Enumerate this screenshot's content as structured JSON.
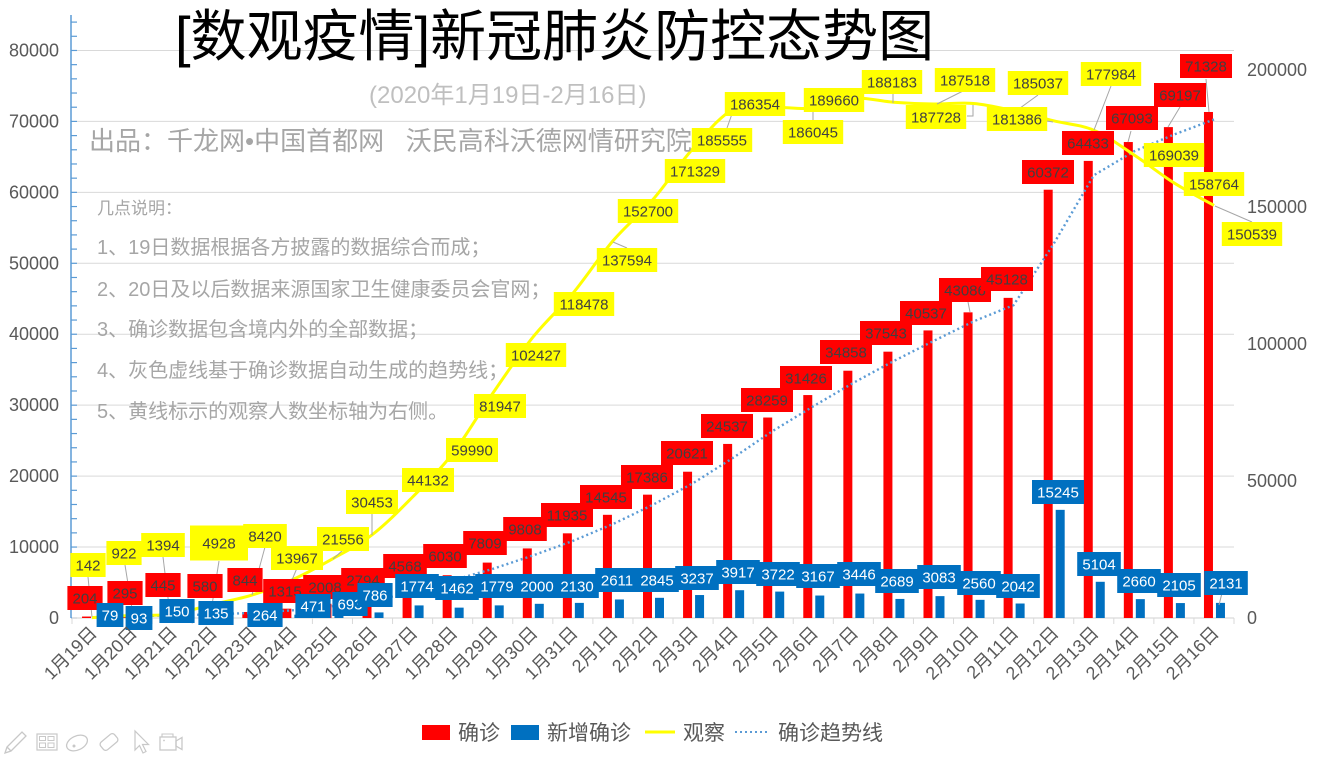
{
  "chart_data": {
    "type": "bar",
    "title": "[数观疫情]新冠肺炎防控态势图",
    "subtitle": "(2020年1月19日-2月16日)",
    "annotations": {
      "source": "出品：千龙网•中国首都网   沃民高科沃德网情研究院",
      "notes_heading": "几点说明：",
      "notes": [
        "1、19日数据根据各方披露的数据综合而成；",
        "2、20日及以后数据来源国家卫生健康委员会官网；",
        "3、确诊数据包含境内外的全部数据；",
        "4、灰色虚线基于确诊数据自动生成的趋势线；",
        "5、黄线标示的观察人数坐标轴为右侧。"
      ]
    },
    "categories": [
      "1月19日",
      "1月20日",
      "1月21日",
      "1月22日",
      "1月23日",
      "1月24日",
      "1月25日",
      "1月26日",
      "1月27日",
      "1月28日",
      "1月29日",
      "1月30日",
      "1月31日",
      "2月1日",
      "2月2日",
      "2月3日",
      "2月4日",
      "2月5日",
      "2月6日",
      "2月7日",
      "2月8日",
      "2月9日",
      "2月10日",
      "2月11日",
      "2月12日",
      "2月13日",
      "2月14日",
      "2月15日",
      "2月16日"
    ],
    "series": [
      {
        "name": "确诊",
        "type": "bar",
        "axis": "left",
        "color": "#ff0000",
        "label_background": "#ff0000",
        "label_text_color": "#404040",
        "values": [
          204,
          295,
          445,
          580,
          844,
          1315,
          2008,
          2794,
          4568,
          6030,
          7809,
          9808,
          11935,
          14545,
          17386,
          20621,
          24537,
          28259,
          31426,
          34858,
          37543,
          40537,
          43086,
          45128,
          60372,
          64433,
          67093,
          69197,
          71328
        ]
      },
      {
        "name": "新增确诊",
        "type": "bar",
        "axis": "left",
        "color": "#0070c0",
        "label_background": "#0070c0",
        "label_text_color": "#ffffff",
        "values": [
          79,
          93,
          150,
          135,
          264,
          471,
          693,
          786,
          1774,
          1462,
          1779,
          2000,
          2130,
          2611,
          2845,
          3237,
          3917,
          3722,
          3167,
          3446,
          2689,
          3083,
          2560,
          2042,
          15245,
          5104,
          2660,
          2105,
          2131
        ]
      },
      {
        "name": "观察",
        "type": "line",
        "axis": "right",
        "color": "#ffff00",
        "label_background": "#ffff00",
        "label_text_color": "#404040",
        "values": [
          142,
          922,
          1394,
          4928,
          8420,
          13967,
          21556,
          30453,
          44132,
          59990,
          81947,
          102427,
          118478,
          137594,
          152700,
          171329,
          185555,
          186354,
          186045,
          189660,
          188183,
          187518,
          187728,
          185037,
          181386,
          177984,
          169039,
          158764,
          150539
        ]
      }
    ],
    "trendline": {
      "name": "确诊趋势线",
      "type": "moving_average",
      "period": 2,
      "source_series": "确诊",
      "color": "#5b9bd5",
      "style": "dotted"
    },
    "xlabel": "",
    "ylabel": "",
    "y2label": "",
    "ylim": [
      0,
      85000
    ],
    "y_major_unit": 10000,
    "y_minor_unit": 2000,
    "y_tick_labels": [
      "0",
      "10000",
      "20000",
      "30000",
      "40000",
      "50000",
      "60000",
      "70000",
      "80000"
    ],
    "y2lim": [
      0,
      220000
    ],
    "y2_major_unit": 50000,
    "y2_tick_labels": [
      "0",
      "50000",
      "100000",
      "150000",
      "200000"
    ],
    "grid": true,
    "data_labels": true,
    "axis_color": "#5b9bd5",
    "grid_color": "#d9d9d9",
    "legend": {
      "position": "bottom",
      "entries": [
        "确诊",
        "新增确诊",
        "观察",
        "确诊趋势线"
      ]
    }
  },
  "slideshow_toolbar": {
    "icons": [
      "pen-icon",
      "slide-sorter-icon",
      "highlighter-icon",
      "eraser-icon",
      "pointer-icon",
      "video-camera-icon"
    ]
  }
}
